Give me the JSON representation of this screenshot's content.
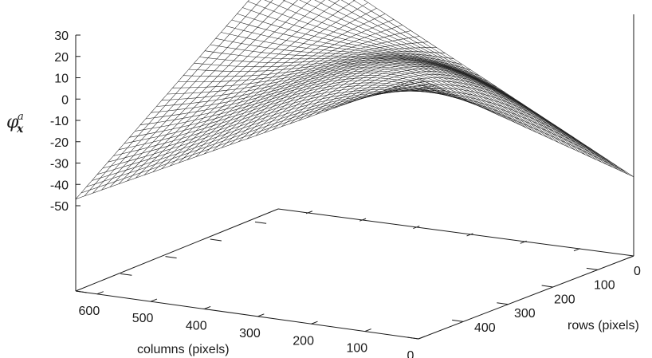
{
  "chart_data": {
    "type": "surface",
    "zlabel": {
      "symbol": "φ",
      "superscript": "a",
      "subscript": "x"
    },
    "xlabel": "columns (pixels)",
    "ylabel": "rows (pixels)",
    "z_ticks": [
      "30",
      "20",
      "10",
      "0",
      "-10",
      "-20",
      "-30",
      "-40",
      "-50"
    ],
    "z_tick_values": [
      30,
      20,
      10,
      0,
      -10,
      -20,
      -30,
      -40,
      -50
    ],
    "x_ticks": [
      "600",
      "500",
      "400",
      "300",
      "200",
      "100",
      "0"
    ],
    "x_tick_values": [
      600,
      500,
      400,
      300,
      200,
      100,
      0
    ],
    "y_ticks": [
      "0",
      "100",
      "200",
      "300",
      "400"
    ],
    "y_tick_values": [
      0,
      100,
      200,
      300,
      400
    ],
    "xlim": [
      0,
      640
    ],
    "ylim": [
      0,
      480
    ],
    "zlim": [
      -50,
      30
    ],
    "corner_values": [
      {
        "column": 640,
        "row": 0,
        "z": -47
      },
      {
        "column": 0,
        "row": 480,
        "z": -53
      },
      {
        "column": 0,
        "row": 0,
        "z": 32
      },
      {
        "column": 640,
        "row": 480,
        "z": 30
      }
    ],
    "grid": false
  }
}
